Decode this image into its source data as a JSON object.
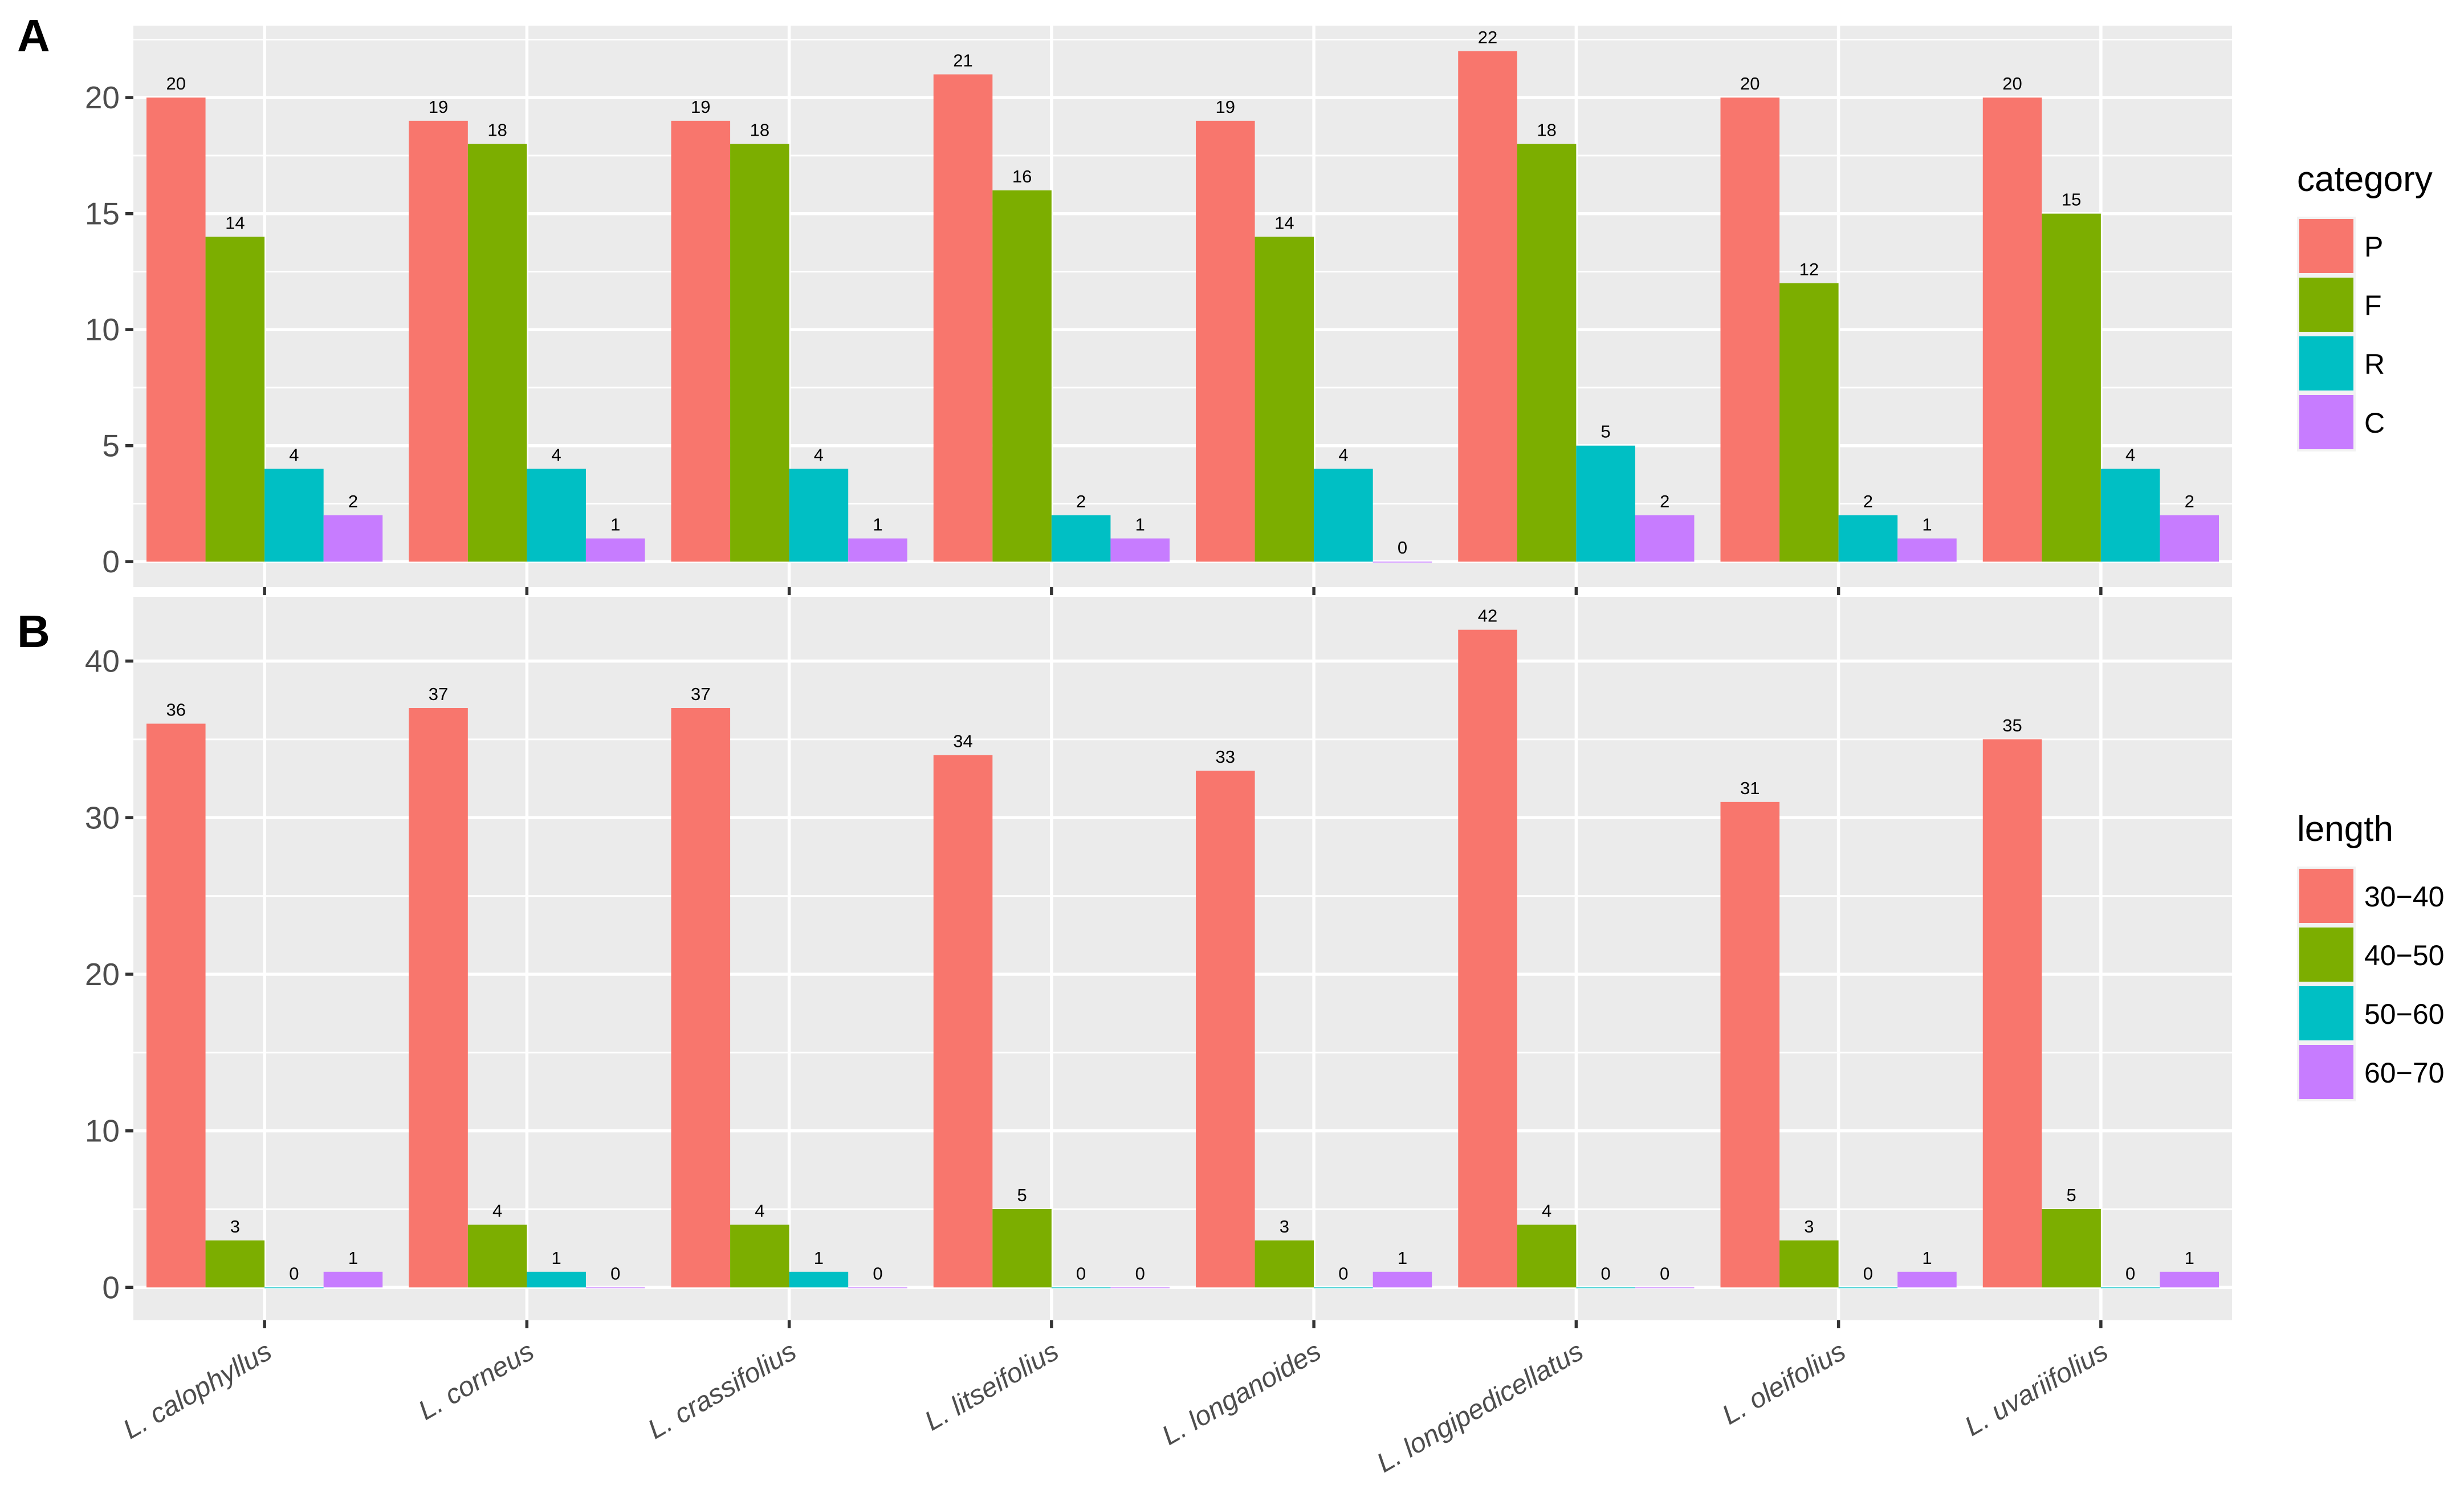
{
  "chart_data": [
    {
      "type": "bar",
      "panel": "A",
      "categories": [
        "L. calophyllus",
        "L. corneus",
        "L. crassifolius",
        "L. litseifolius",
        "L. longanoides",
        "L. longipedicellatus",
        "L. oleifolius",
        "L. uvariifolius"
      ],
      "series": [
        {
          "name": "P",
          "color": "#F8766D",
          "values": [
            20,
            19,
            19,
            21,
            19,
            22,
            20,
            20
          ]
        },
        {
          "name": "F",
          "color": "#7CAE00",
          "values": [
            14,
            18,
            18,
            16,
            14,
            18,
            12,
            15
          ]
        },
        {
          "name": "R",
          "color": "#00BFC4",
          "values": [
            4,
            4,
            4,
            2,
            4,
            5,
            2,
            4
          ]
        },
        {
          "name": "C",
          "color": "#C77CFF",
          "values": [
            2,
            1,
            1,
            1,
            0,
            2,
            1,
            2
          ]
        }
      ],
      "ylim": [
        -1.1,
        23.1
      ],
      "yticks": [
        0,
        5,
        10,
        15,
        20
      ],
      "ytick_labels": [
        "0",
        "5",
        "10",
        "15",
        "20"
      ],
      "legend": {
        "title": "category",
        "labels": [
          "P",
          "F",
          "R",
          "C"
        ],
        "placement": "right"
      },
      "xlabel": "",
      "ylabel": ""
    },
    {
      "type": "bar",
      "panel": "B",
      "categories": [
        "L. calophyllus",
        "L. corneus",
        "L. crassifolius",
        "L. litseifolius",
        "L. longanoides",
        "L. longipedicellatus",
        "L. oleifolius",
        "L. uvariifolius"
      ],
      "series": [
        {
          "name": "30−40",
          "color": "#F8766D",
          "values": [
            36,
            37,
            37,
            34,
            33,
            42,
            31,
            35
          ]
        },
        {
          "name": "40−50",
          "color": "#7CAE00",
          "values": [
            3,
            4,
            4,
            5,
            3,
            4,
            3,
            5
          ]
        },
        {
          "name": "50−60",
          "color": "#00BFC4",
          "values": [
            0,
            1,
            1,
            0,
            0,
            0,
            0,
            0
          ]
        },
        {
          "name": "60−70",
          "color": "#C77CFF",
          "values": [
            1,
            0,
            0,
            0,
            1,
            0,
            1,
            1
          ]
        }
      ],
      "ylim": [
        -2.1,
        44.1
      ],
      "yticks": [
        0,
        10,
        20,
        30,
        40
      ],
      "ytick_labels": [
        "0",
        "10",
        "20",
        "30",
        "40"
      ],
      "legend": {
        "title": "length",
        "labels": [
          "30−40",
          "40−50",
          "50−60",
          "60−70"
        ],
        "placement": "right"
      },
      "xlabel": "",
      "ylabel": ""
    }
  ]
}
